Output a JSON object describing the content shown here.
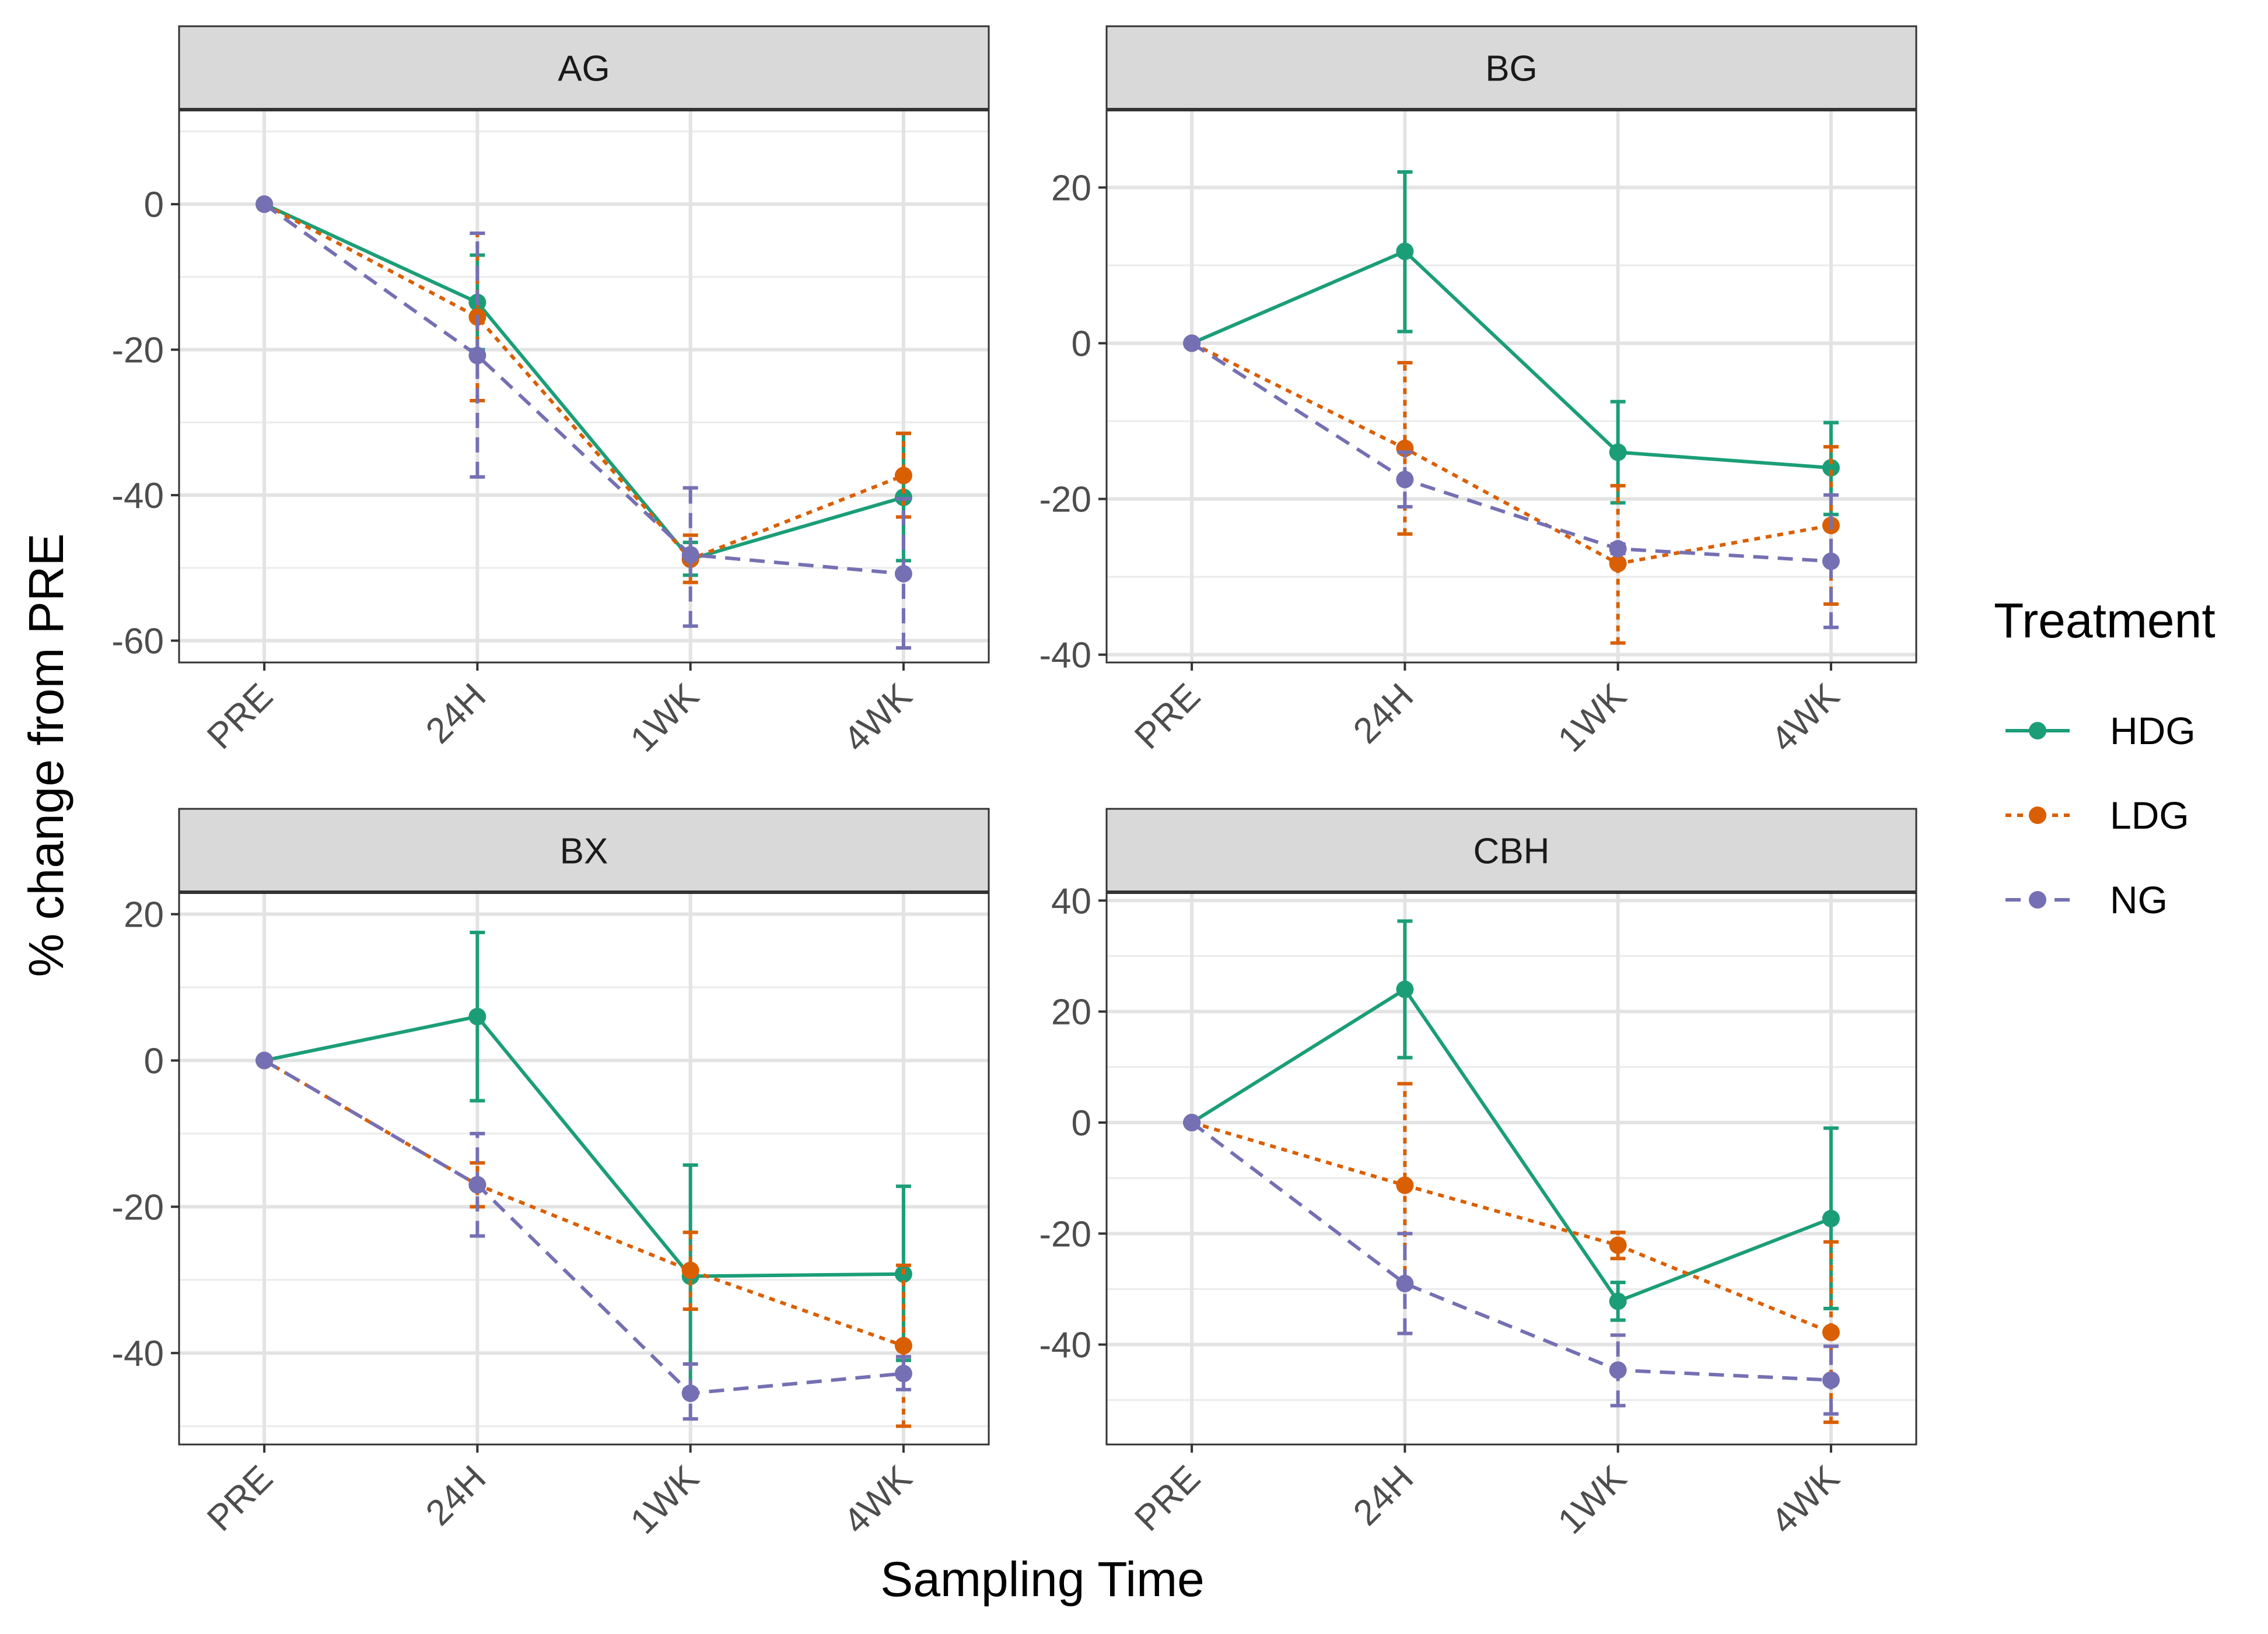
{
  "figure": {
    "xlabel": "Sampling Time",
    "ylabel": "% change from PRE"
  },
  "legend": {
    "title": "Treatment",
    "placement": "right",
    "items": [
      {
        "label": "HDG",
        "color": "#1b9e77",
        "linetype": "solid"
      },
      {
        "label": "LDG",
        "color": "#d95f02",
        "linetype": "dotted"
      },
      {
        "label": "NG",
        "color": "#7570b3",
        "linetype": "dashed"
      }
    ]
  },
  "chart_data": [
    {
      "type": "line",
      "title": "AG",
      "categories": [
        "PRE",
        "24H",
        "1WK",
        "4WK"
      ],
      "ylim": [
        -63,
        13
      ],
      "yticks": [
        0,
        -20,
        -40,
        -60
      ],
      "grid": true,
      "series": [
        {
          "name": "HDG",
          "values": [
            0,
            -13.5,
            -48.8,
            -40.3
          ],
          "error_lower": [
            0,
            -20.0,
            -51.0,
            -49.0
          ],
          "error_upper": [
            0,
            -7.0,
            -46.5,
            -31.5
          ]
        },
        {
          "name": "LDG",
          "values": [
            0,
            -15.5,
            -48.8,
            -37.3
          ],
          "error_lower": [
            0,
            -27.0,
            -52.0,
            -43.0
          ],
          "error_upper": [
            0,
            -4.0,
            -45.5,
            -31.5
          ]
        },
        {
          "name": "NG",
          "values": [
            0,
            -20.8,
            -48.2,
            -50.8
          ],
          "error_lower": [
            0,
            -37.5,
            -58.0,
            -61.0
          ],
          "error_upper": [
            0,
            -4.0,
            -39.0,
            -40.5
          ]
        }
      ]
    },
    {
      "type": "line",
      "title": "BG",
      "categories": [
        "PRE",
        "24H",
        "1WK",
        "4WK"
      ],
      "ylim": [
        -41,
        30
      ],
      "yticks": [
        20,
        0,
        -20,
        -40
      ],
      "grid": true,
      "series": [
        {
          "name": "HDG",
          "values": [
            0,
            11.8,
            -14.0,
            -16.0
          ],
          "error_lower": [
            0,
            1.5,
            -20.5,
            -22.0
          ],
          "error_upper": [
            0,
            22.0,
            -7.5,
            -10.2
          ]
        },
        {
          "name": "LDG",
          "values": [
            0,
            -13.5,
            -28.3,
            -23.4
          ],
          "error_lower": [
            0,
            -24.5,
            -38.5,
            -33.5
          ],
          "error_upper": [
            0,
            -2.5,
            -18.3,
            -13.3
          ]
        },
        {
          "name": "NG",
          "values": [
            0,
            -17.5,
            -26.4,
            -28.0
          ],
          "error_lower": [
            0,
            -21.0,
            -27.0,
            -36.5
          ],
          "error_upper": [
            0,
            -14.0,
            -25.8,
            -19.5
          ]
        }
      ]
    },
    {
      "type": "line",
      "title": "BX",
      "categories": [
        "PRE",
        "24H",
        "1WK",
        "4WK"
      ],
      "ylim": [
        -52.5,
        23
      ],
      "yticks": [
        20,
        0,
        -20,
        -40
      ],
      "grid": true,
      "series": [
        {
          "name": "HDG",
          "values": [
            0,
            6.0,
            -29.5,
            -29.2
          ],
          "error_lower": [
            0,
            -5.5,
            -45.0,
            -41.0
          ],
          "error_upper": [
            0,
            17.5,
            -14.3,
            -17.2
          ]
        },
        {
          "name": "LDG",
          "values": [
            0,
            -17.0,
            -28.7,
            -39.0
          ],
          "error_lower": [
            0,
            -20.0,
            -34.0,
            -50.0
          ],
          "error_upper": [
            0,
            -14.0,
            -23.5,
            -28.0
          ]
        },
        {
          "name": "NG",
          "values": [
            0,
            -17.0,
            -45.5,
            -42.8
          ],
          "error_lower": [
            0,
            -24.0,
            -49.0,
            -45.0
          ],
          "error_upper": [
            0,
            -10.0,
            -41.5,
            -40.5
          ]
        }
      ]
    },
    {
      "type": "line",
      "title": "CBH",
      "categories": [
        "PRE",
        "24H",
        "1WK",
        "4WK"
      ],
      "ylim": [
        -58,
        41.5
      ],
      "yticks": [
        40,
        20,
        0,
        -20,
        -40
      ],
      "grid": true,
      "series": [
        {
          "name": "HDG",
          "values": [
            0,
            24.0,
            -32.2,
            -17.3
          ],
          "error_lower": [
            0,
            11.7,
            -35.6,
            -33.5
          ],
          "error_upper": [
            0,
            36.3,
            -28.8,
            -1.0
          ]
        },
        {
          "name": "LDG",
          "values": [
            0,
            -11.3,
            -22.1,
            -37.8
          ],
          "error_lower": [
            0,
            -29.0,
            -24.5,
            -54.0
          ],
          "error_upper": [
            0,
            7.0,
            -19.8,
            -21.5
          ]
        },
        {
          "name": "NG",
          "values": [
            0,
            -29.0,
            -44.6,
            -46.4
          ],
          "error_lower": [
            0,
            -38.0,
            -51.0,
            -52.5
          ],
          "error_upper": [
            0,
            -20.0,
            -38.3,
            -40.3
          ]
        }
      ]
    }
  ]
}
